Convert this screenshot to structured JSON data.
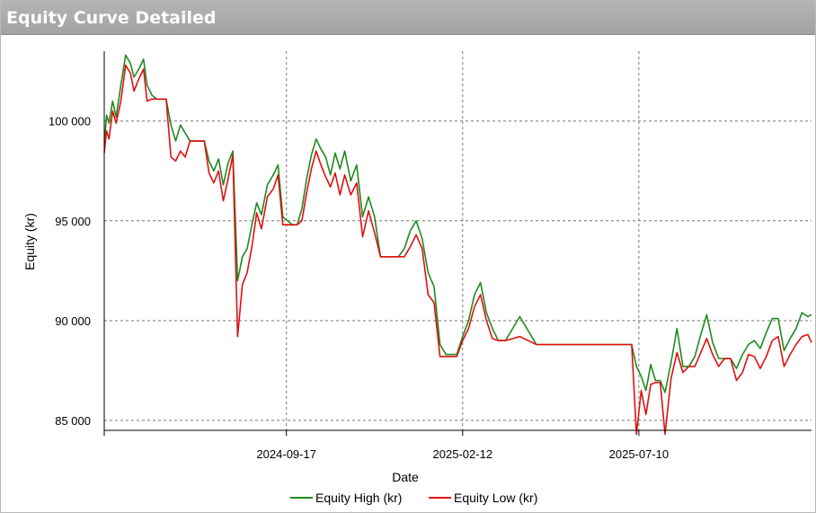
{
  "window": {
    "title": "Equity Curve Detailed"
  },
  "colors": {
    "high": "#1f8a1f",
    "low": "#e01010",
    "grid": "#777777",
    "axis": "#000000"
  },
  "chart_data": {
    "type": "line",
    "xlabel": "Date",
    "ylabel": "Equity (kr)",
    "x_ticks": [
      "2024-09-17",
      "2025-02-12",
      "2025-07-10"
    ],
    "x_range": [
      "2024-04-17",
      "2025-12-02"
    ],
    "ylim": [
      84500,
      103500
    ],
    "y_ticks": [
      85000,
      90000,
      95000,
      100000
    ],
    "y_tick_labels": [
      "85 000",
      "90 000",
      "95 000",
      "100 000"
    ],
    "grid": true,
    "legend": "bottom-center",
    "series": [
      {
        "name": "Equity High (kr)",
        "x": [
          "2024-04-17",
          "2024-04-19",
          "2024-04-21",
          "2024-04-24",
          "2024-04-27",
          "2024-05-01",
          "2024-05-05",
          "2024-05-09",
          "2024-05-12",
          "2024-05-16",
          "2024-05-20",
          "2024-05-23",
          "2024-05-27",
          "2024-05-31",
          "2024-06-04",
          "2024-06-08",
          "2024-06-12",
          "2024-06-16",
          "2024-06-20",
          "2024-06-24",
          "2024-06-28",
          "2024-07-02",
          "2024-07-06",
          "2024-07-10",
          "2024-07-14",
          "2024-07-18",
          "2024-07-22",
          "2024-07-26",
          "2024-07-30",
          "2024-08-03",
          "2024-08-07",
          "2024-08-11",
          "2024-08-15",
          "2024-08-19",
          "2024-08-23",
          "2024-08-27",
          "2024-09-01",
          "2024-09-06",
          "2024-09-10",
          "2024-09-14",
          "2024-09-18",
          "2024-09-22",
          "2024-09-26",
          "2024-09-30",
          "2024-10-04",
          "2024-10-08",
          "2024-10-12",
          "2024-10-16",
          "2024-10-20",
          "2024-10-24",
          "2024-10-28",
          "2024-11-01",
          "2024-11-05",
          "2024-11-10",
          "2024-11-15",
          "2024-11-20",
          "2024-11-25",
          "2024-11-30",
          "2024-12-05",
          "2024-12-10",
          "2024-12-15",
          "2024-12-20",
          "2024-12-25",
          "2024-12-30",
          "2025-01-04",
          "2025-01-09",
          "2025-01-14",
          "2025-01-19",
          "2025-01-24",
          "2025-01-29",
          "2025-02-03",
          "2025-02-07",
          "2025-02-12",
          "2025-02-17",
          "2025-02-22",
          "2025-02-27",
          "2025-03-04",
          "2025-03-09",
          "2025-03-14",
          "2025-03-20",
          "2025-04-01",
          "2025-04-15",
          "2025-05-01",
          "2025-05-04",
          "2025-05-08",
          "2025-05-12",
          "2025-05-16",
          "2025-05-20",
          "2025-05-24",
          "2025-05-28",
          "2025-06-01",
          "2025-06-10",
          "2025-06-20",
          "2025-06-30",
          "2025-07-04",
          "2025-07-08",
          "2025-07-12",
          "2025-07-16",
          "2025-07-20",
          "2025-07-24",
          "2025-07-28",
          "2025-08-01",
          "2025-08-06",
          "2025-08-11",
          "2025-08-16",
          "2025-08-21",
          "2025-08-26",
          "2025-08-31",
          "2025-09-05",
          "2025-09-10",
          "2025-09-15",
          "2025-09-20",
          "2025-09-25",
          "2025-09-30",
          "2025-10-05",
          "2025-10-10",
          "2025-10-15",
          "2025-10-20",
          "2025-10-25",
          "2025-10-30",
          "2025-11-04",
          "2025-11-09",
          "2025-11-14",
          "2025-11-19",
          "2025-11-24",
          "2025-11-29",
          "2025-12-02"
        ],
        "y": [
          98800,
          100300,
          99900,
          101000,
          100200,
          101800,
          103300,
          102900,
          102200,
          102600,
          103100,
          101800,
          101300,
          101100,
          101100,
          101100,
          99800,
          99000,
          99800,
          99400,
          99000,
          99000,
          99000,
          99000,
          98000,
          97500,
          98100,
          96800,
          97900,
          98500,
          92000,
          93200,
          93600,
          94800,
          95900,
          95300,
          96800,
          97300,
          97800,
          95200,
          95000,
          94800,
          94800,
          95600,
          97100,
          98300,
          99100,
          98600,
          98200,
          97300,
          98400,
          97600,
          98500,
          97000,
          97800,
          95200,
          96200,
          95200,
          93200,
          93200,
          93200,
          93200,
          93600,
          94500,
          95000,
          94100,
          92400,
          91700,
          88800,
          88300,
          88300,
          88300,
          89200,
          90000,
          91300,
          91900,
          90400,
          89600,
          89000,
          89000,
          90200,
          88800,
          88800,
          88800,
          88800,
          88800,
          88800,
          88800,
          88800,
          88800,
          88800,
          88800,
          88800,
          88800,
          88800,
          87700,
          87200,
          86500,
          87800,
          87000,
          87000,
          86400,
          87900,
          89600,
          87700,
          87700,
          88200,
          89300,
          90300,
          88900,
          88100,
          88100,
          88100,
          87600,
          88300,
          88800,
          89000,
          88600,
          89400,
          90100,
          90100,
          88500,
          89100,
          89600,
          90400,
          90200,
          90300
        ],
        "note_clip": true
      },
      {
        "name": "Equity Low (kr)",
        "x": [
          "2024-04-17",
          "2024-04-19",
          "2024-04-21",
          "2024-04-24",
          "2024-04-27",
          "2024-05-01",
          "2024-05-05",
          "2024-05-09",
          "2024-05-12",
          "2024-05-16",
          "2024-05-20",
          "2024-05-23",
          "2024-05-27",
          "2024-05-31",
          "2024-06-04",
          "2024-06-08",
          "2024-06-12",
          "2024-06-16",
          "2024-06-20",
          "2024-06-24",
          "2024-06-28",
          "2024-07-02",
          "2024-07-06",
          "2024-07-10",
          "2024-07-14",
          "2024-07-18",
          "2024-07-22",
          "2024-07-26",
          "2024-07-30",
          "2024-08-03",
          "2024-08-07",
          "2024-08-11",
          "2024-08-15",
          "2024-08-19",
          "2024-08-23",
          "2024-08-27",
          "2024-09-01",
          "2024-09-06",
          "2024-09-10",
          "2024-09-14",
          "2024-09-18",
          "2024-09-22",
          "2024-09-26",
          "2024-09-30",
          "2024-10-04",
          "2024-10-08",
          "2024-10-12",
          "2024-10-16",
          "2024-10-20",
          "2024-10-24",
          "2024-10-28",
          "2024-11-01",
          "2024-11-05",
          "2024-11-10",
          "2024-11-15",
          "2024-11-20",
          "2024-11-25",
          "2024-11-30",
          "2024-12-05",
          "2024-12-10",
          "2024-12-15",
          "2024-12-20",
          "2024-12-25",
          "2024-12-30",
          "2025-01-04",
          "2025-01-09",
          "2025-01-14",
          "2025-01-19",
          "2025-01-24",
          "2025-01-29",
          "2025-02-03",
          "2025-02-07",
          "2025-02-12",
          "2025-02-17",
          "2025-02-22",
          "2025-02-27",
          "2025-03-04",
          "2025-03-09",
          "2025-03-14",
          "2025-03-20",
          "2025-04-01",
          "2025-04-15",
          "2025-05-01",
          "2025-05-04",
          "2025-05-08",
          "2025-05-12",
          "2025-05-16",
          "2025-05-20",
          "2025-05-24",
          "2025-05-28",
          "2025-06-01",
          "2025-06-10",
          "2025-06-20",
          "2025-06-30",
          "2025-07-04",
          "2025-07-08",
          "2025-07-12",
          "2025-07-16",
          "2025-07-20",
          "2025-07-24",
          "2025-07-28",
          "2025-08-01",
          "2025-08-06",
          "2025-08-11",
          "2025-08-16",
          "2025-08-21",
          "2025-08-26",
          "2025-08-31",
          "2025-09-05",
          "2025-09-10",
          "2025-09-15",
          "2025-09-20",
          "2025-09-25",
          "2025-09-30",
          "2025-10-05",
          "2025-10-10",
          "2025-10-15",
          "2025-10-20",
          "2025-10-25",
          "2025-10-30",
          "2025-11-04",
          "2025-11-09",
          "2025-11-14",
          "2025-11-19",
          "2025-11-24",
          "2025-11-29",
          "2025-12-02"
        ],
        "y": [
          98400,
          99500,
          99100,
          100500,
          99900,
          101000,
          102800,
          102400,
          101500,
          102100,
          102600,
          101000,
          101100,
          101100,
          101100,
          101100,
          98200,
          98000,
          98500,
          98200,
          99000,
          99000,
          99000,
          99000,
          97400,
          96900,
          97500,
          96000,
          97100,
          98300,
          89200,
          91800,
          92400,
          93700,
          95400,
          94600,
          96200,
          96600,
          97300,
          94800,
          94800,
          94800,
          94800,
          95000,
          96400,
          97600,
          98500,
          97800,
          97200,
          96700,
          97400,
          96300,
          97300,
          96300,
          96900,
          94200,
          95500,
          94400,
          93200,
          93200,
          93200,
          93200,
          93200,
          93700,
          94300,
          93600,
          91300,
          90900,
          88200,
          88200,
          88200,
          88200,
          89000,
          89600,
          90700,
          91300,
          90000,
          89100,
          89000,
          89000,
          89200,
          88800,
          88800,
          88800,
          88800,
          88800,
          88800,
          88800,
          88800,
          88800,
          88800,
          88800,
          88800,
          88800,
          88800,
          84300,
          86500,
          85300,
          86800,
          86900,
          86900,
          84300,
          87100,
          88400,
          87400,
          87700,
          87700,
          88400,
          89100,
          88300,
          87700,
          88100,
          88100,
          87000,
          87400,
          88300,
          88200,
          87600,
          88200,
          89000,
          89200,
          87700,
          88300,
          88800,
          89200,
          89300,
          88900
        ]
      }
    ]
  }
}
